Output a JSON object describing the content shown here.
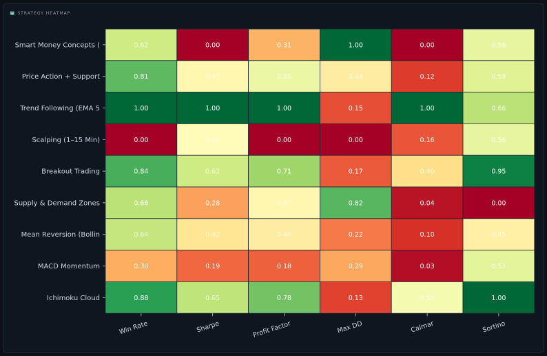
{
  "panel": {
    "title": "🗺️ STRATEGY HEATMAP"
  },
  "chart_data": {
    "type": "heatmap",
    "rows": [
      "Smart Money Concepts (",
      "Price Action + Support",
      "Trend Following (EMA 5",
      "Scalping (1–15 Min)",
      "Breakout Trading",
      "Supply & Demand Zones",
      "Mean Reversion (Bollin",
      "MACD Momentum",
      "Ichimoku Cloud"
    ],
    "columns": [
      "Win Rate",
      "Sharpe",
      "Profit Factor",
      "Max DD",
      "Calmar",
      "Sortino"
    ],
    "values": [
      [
        "0.62",
        "0.00",
        "0.31",
        "1.00",
        "0.00",
        "0.56"
      ],
      [
        "0.81",
        "0.47",
        "0.55",
        "0.44",
        "0.12",
        "0.58"
      ],
      [
        "1.00",
        "1.00",
        "1.00",
        "0.15",
        "1.00",
        "0.66"
      ],
      [
        "0.00",
        "0.49",
        "0.00",
        "0.00",
        "0.16",
        "0.56"
      ],
      [
        "0.84",
        "0.62",
        "0.71",
        "0.17",
        "0.40",
        "0.95"
      ],
      [
        "0.66",
        "0.28",
        "0.47",
        "0.82",
        "0.04",
        "0.00"
      ],
      [
        "0.64",
        "0.42",
        "0.44",
        "0.22",
        "0.10",
        "0.45"
      ],
      [
        "0.30",
        "0.19",
        "0.18",
        "0.29",
        "0.03",
        "0.57"
      ],
      [
        "0.88",
        "0.65",
        "0.78",
        "0.13",
        "0.53",
        "1.00"
      ]
    ],
    "colormap": "RdYlGn",
    "vmin": 0,
    "vmax": 1,
    "colors": {
      "low": "#a50026",
      "mid": "#ffffbf",
      "high": "#006837",
      "text_light": "#ffffff",
      "text_dark": "#e8e8e8"
    }
  }
}
